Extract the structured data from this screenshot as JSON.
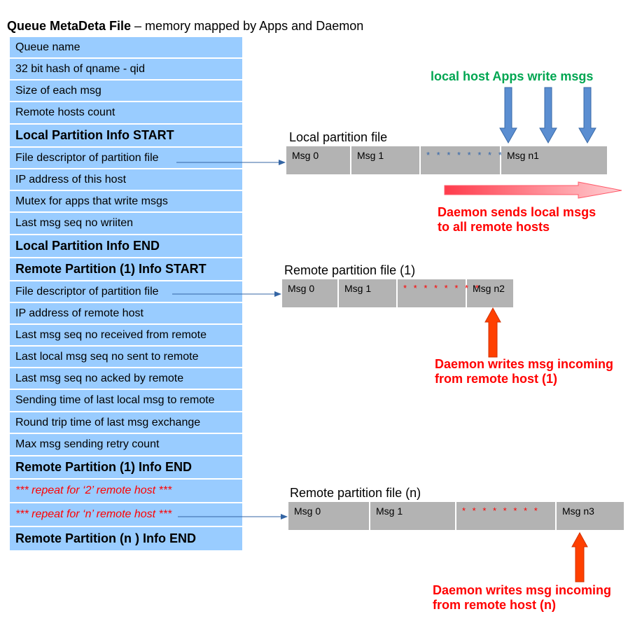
{
  "title": {
    "bold": "Queue MetaDeta File",
    "rest": " – memory mapped by Apps and Daemon"
  },
  "meta_rows": [
    {
      "text": "Queue name",
      "style": "normal"
    },
    {
      "text": "32 bit hash of qname - qid",
      "style": "normal"
    },
    {
      "text": "Size of each msg",
      "style": "normal"
    },
    {
      "text": "Remote hosts count",
      "style": "normal"
    },
    {
      "text": "Local Partition Info START",
      "style": "bold"
    },
    {
      "text": "File descriptor of partition file",
      "style": "normal"
    },
    {
      "text": "IP address of this host",
      "style": "normal"
    },
    {
      "text": "Mutex for apps that write msgs",
      "style": "normal"
    },
    {
      "text": "Last msg seq no wriiten",
      "style": "normal"
    },
    {
      "text": "Local Partition Info END",
      "style": "bold"
    },
    {
      "text": "Remote Partition (1) Info START",
      "style": "bold"
    },
    {
      "text": "File descriptor of partition file",
      "style": "normal"
    },
    {
      "text": "IP address of remote host",
      "style": "normal"
    },
    {
      "text": "Last msg seq no received from remote",
      "style": "normal"
    },
    {
      "text": "Last local msg seq no sent to remote",
      "style": "normal"
    },
    {
      "text": "Last  msg seq no acked  by remote",
      "style": "normal"
    },
    {
      "text": "Sending time of last local msg to remote",
      "style": "normal"
    },
    {
      "text": "Round trip time of last msg exchange",
      "style": "normal"
    },
    {
      "text": "Max msg sending retry count",
      "style": "normal"
    },
    {
      "text": "Remote Partition (1) Info END",
      "style": "bold"
    },
    {
      "text": "*** repeat for ‘2’ remote host ***",
      "style": "red"
    },
    {
      "text": "*** repeat for ‘n’ remote host ***",
      "style": "red"
    },
    {
      "text": "Remote Partition (n ) Info END",
      "style": "bold"
    }
  ],
  "local_file": {
    "title": "Local partition file",
    "cells": [
      "Msg 0",
      "Msg 1",
      "* * * * * * * *",
      "Msg n1"
    ]
  },
  "remote_file_1": {
    "title": "Remote partition file (1)",
    "cells": [
      "Msg 0",
      "Msg 1",
      "* * * * * * * *",
      "Msg n2"
    ]
  },
  "remote_file_n": {
    "title": "Remote partition file (n)",
    "cells": [
      "Msg 0",
      "Msg 1",
      "* * * * * * * *",
      "Msg n3"
    ]
  },
  "notes": {
    "apps_write": "local host Apps write msgs",
    "daemon_sends_1": "Daemon sends local msgs",
    "daemon_sends_2": "to all remote hosts",
    "daemon_writes_1_a": "Daemon writes msg incoming",
    "daemon_writes_1_b": "from remote host (1)",
    "daemon_writes_n_a": "Daemon writes msg incoming",
    "daemon_writes_n_b": "from remote host (n)"
  },
  "colors": {
    "meta_bg": "#99ccff",
    "file_bg": "#b3b3b3",
    "blue_arrow": "#4f81bd",
    "orange_arrow": "#ff4000",
    "green_text": "#00a651",
    "red_text": "#ff0000"
  }
}
